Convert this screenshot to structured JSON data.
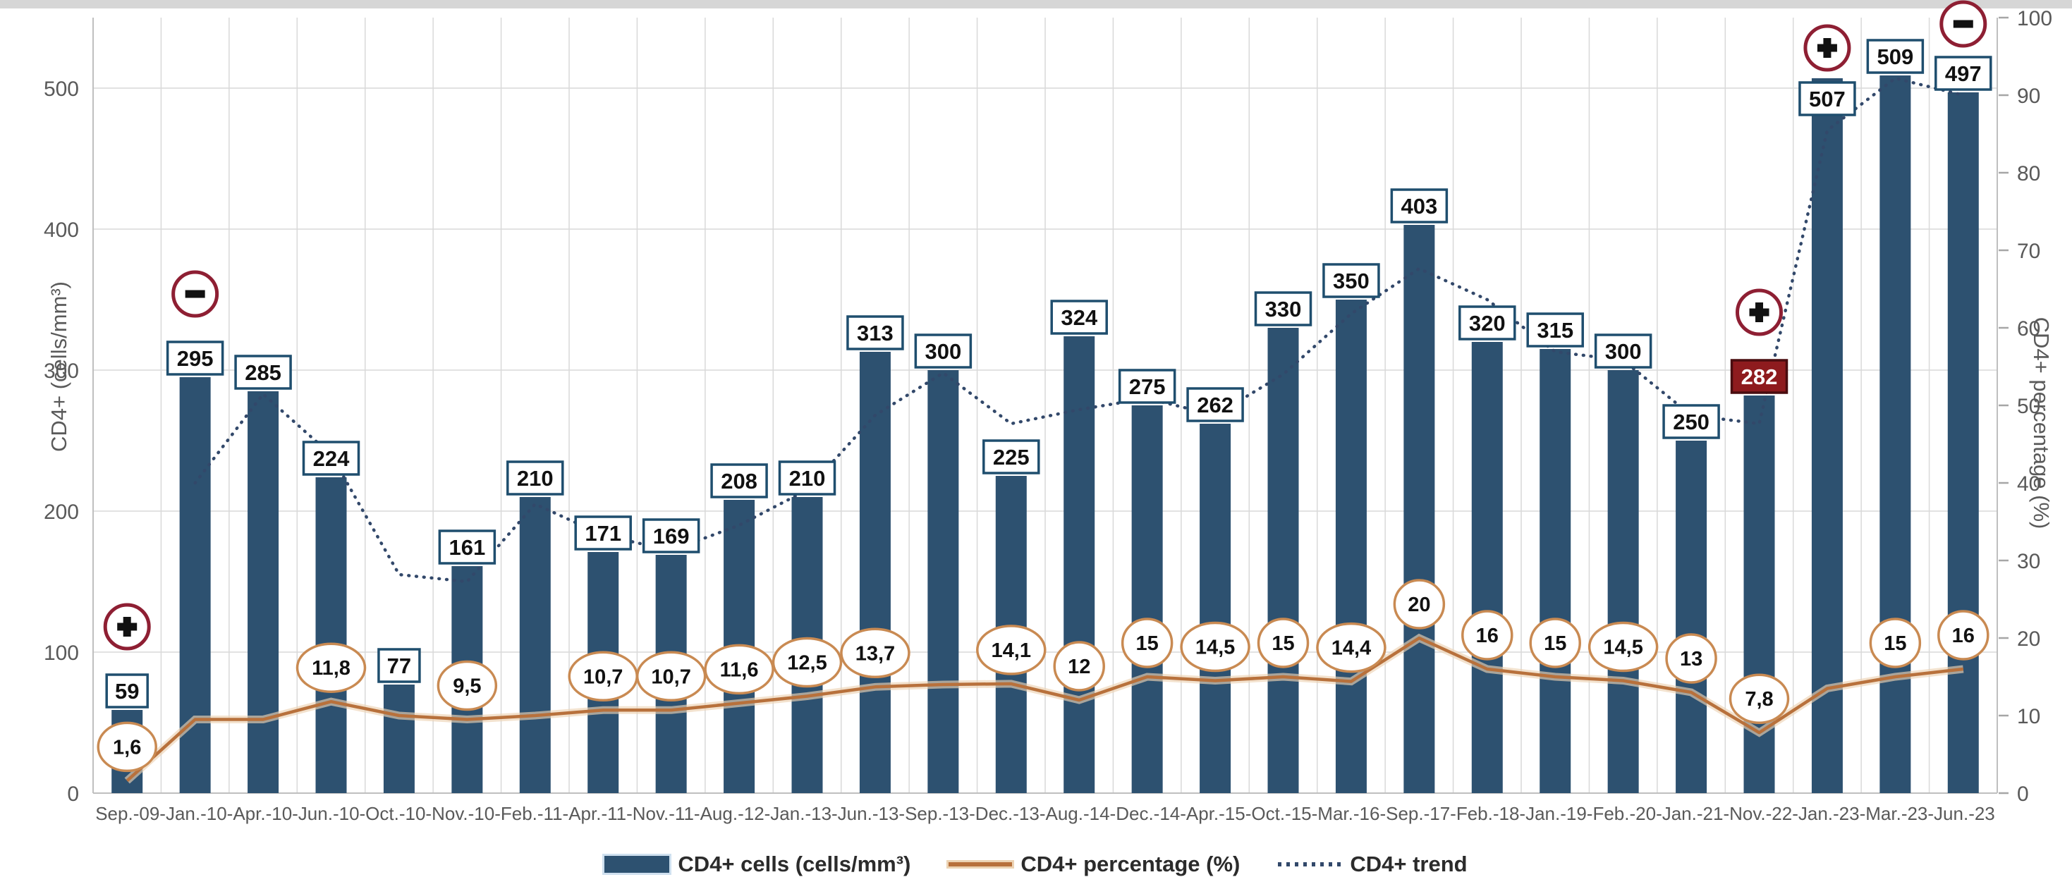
{
  "window": {
    "top_strip_color": "#d6d6d6"
  },
  "chart_data": {
    "type": "bar",
    "title": "",
    "categories": [
      "Sep.-09",
      "Jan.-10",
      "Apr.-10",
      "Jun.-10",
      "Oct.-10",
      "Nov.-10",
      "Feb.-11",
      "Apr.-11",
      "Nov.-11",
      "Aug.-12",
      "Jan.-13",
      "Jun.-13",
      "Sep.-13",
      "Dec.-13",
      "Aug.-14",
      "Dec.-14",
      "Apr.-15",
      "Oct.-15",
      "Mar.-16",
      "Sep.-17",
      "Feb.-18",
      "Jan.-19",
      "Feb.-20",
      "Jan.-21",
      "Nov.-22",
      "Jan.-23",
      "Mar.-23",
      "Jun.-23"
    ],
    "x_axis_separator": "-",
    "series": [
      {
        "name": "CD4+ cells (cells/mm³)",
        "type": "bar",
        "axis": "left",
        "values": [
          59,
          295,
          285,
          224,
          77,
          161,
          210,
          171,
          169,
          208,
          210,
          313,
          300,
          225,
          324,
          275,
          262,
          330,
          350,
          403,
          320,
          315,
          300,
          250,
          282,
          507,
          509,
          497
        ],
        "value_labels": [
          "59",
          "295",
          "285",
          "224",
          "77",
          "161",
          "210",
          "171",
          "169",
          "208",
          "210",
          "313",
          "300",
          "225",
          "324",
          "275",
          "262",
          "330",
          "350",
          "403",
          "320",
          "315",
          "300",
          "250",
          "282",
          "507",
          "509",
          "497"
        ]
      },
      {
        "name": "CD4+ percentage (%)",
        "type": "line",
        "axis": "right",
        "values": [
          1.6,
          9.5,
          9.5,
          11.8,
          10,
          9.5,
          10,
          10.7,
          10.7,
          11.6,
          12.5,
          13.7,
          14,
          14.1,
          12,
          15,
          14.5,
          15,
          14.4,
          20,
          16,
          15,
          14.5,
          13,
          7.8,
          13.5,
          15,
          16
        ],
        "point_labels": [
          "1,6",
          null,
          null,
          "11,8",
          null,
          "9,5",
          null,
          "10,7",
          "10,7",
          "11,6",
          "12,5",
          "13,7",
          null,
          "14,1",
          "12",
          "15",
          "14,5",
          "15",
          "14,4",
          "20",
          "16",
          "15",
          "14,5",
          "13",
          "7,8",
          null,
          "15",
          "16"
        ]
      },
      {
        "name": "CD4+ trend",
        "type": "dotted_line",
        "axis": "left",
        "values": [
          null,
          220,
          283,
          240,
          155,
          150,
          205,
          183,
          172,
          190,
          215,
          268,
          298,
          262,
          272,
          280,
          268,
          297,
          340,
          372,
          350,
          313,
          307,
          268,
          262,
          470,
          507,
          495
        ]
      }
    ],
    "left_axis": {
      "label": "CD4+ (cells/mm³)",
      "min": 0,
      "max": 550,
      "ticks": [
        0,
        100,
        200,
        300,
        400,
        500
      ]
    },
    "right_axis": {
      "label": "CD4+ percentage (%)",
      "min": 0,
      "max": 100,
      "ticks": [
        0,
        10,
        20,
        30,
        40,
        50,
        60,
        70,
        80,
        90,
        100
      ]
    },
    "grid": true,
    "legend_position": "bottom",
    "annotations": {
      "markers": [
        {
          "category": "Sep.-09",
          "index": 0,
          "symbol": "+"
        },
        {
          "category": "Jan.-10",
          "index": 1,
          "symbol": "-"
        },
        {
          "category": "Nov.-22",
          "index": 24,
          "symbol": "+",
          "value_label_highlighted": true
        },
        {
          "category": "Jan.-23",
          "index": 25,
          "symbol": "+",
          "value_label_inside": true
        },
        {
          "category": "Jun.-23",
          "index": 27,
          "symbol": "-"
        }
      ]
    }
  },
  "colors": {
    "bar": "#2d5170",
    "bar_label_border": "#1f4e6e",
    "bar_label_bg": "#ffffff",
    "bar_label_text": "#111111",
    "alert_label_bg": "#8e1b1e",
    "alert_label_border": "#490c0f",
    "alert_label_text": "#ffffff",
    "pct_line": "#b8713c",
    "pct_line_halo": "#ecd3b4",
    "pct_bubble_border": "#c98a52",
    "pct_bubble_bg": "#ffffff",
    "trend_line": "#32486a",
    "marker_ring": "#8e1f33",
    "marker_glyph": "#111111",
    "grid": "#d9d9d9",
    "axis_line": "#bfbfbf",
    "tick_mark": "#a6a6a6",
    "axis_text": "#595959"
  }
}
